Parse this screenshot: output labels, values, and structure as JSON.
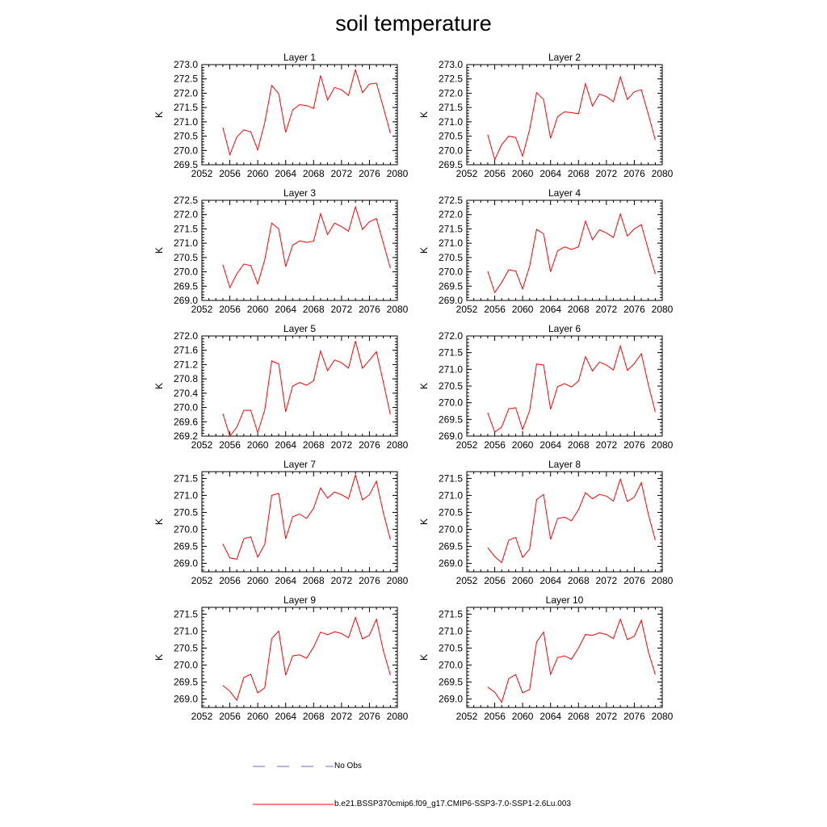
{
  "title": "soil temperature",
  "colors": {
    "series": "#ff0000",
    "obs": "#6a6acd",
    "axis": "#000000"
  },
  "legend": {
    "obs_label": "No Obs",
    "model_label": "b.e21.BSSP370cmip6.f09_g17.CMIP6-SSP3-7.0-SSP1-2.6Lu.003"
  },
  "chart_data": [
    {
      "type": "line",
      "title": "Layer 1",
      "ylabel": "K",
      "xlim": [
        2052,
        2080
      ],
      "xticks": [
        "2052",
        "2056",
        "2060",
        "2064",
        "2068",
        "2072",
        "2076",
        "2080"
      ],
      "ylim": [
        269.5,
        273.0
      ],
      "yticks": [
        "269.5",
        "270.0",
        "270.5",
        "271.0",
        "271.5",
        "272.0",
        "272.5",
        "273.0"
      ],
      "x": [
        2055,
        2056,
        2057,
        2058,
        2059,
        2060,
        2061,
        2062,
        2063,
        2064,
        2065,
        2066,
        2067,
        2068,
        2069,
        2070,
        2071,
        2072,
        2073,
        2074,
        2075,
        2076,
        2077,
        2078,
        2079
      ],
      "values": [
        270.8,
        269.85,
        270.47,
        270.72,
        270.65,
        270.02,
        270.97,
        272.27,
        271.98,
        270.63,
        271.42,
        271.6,
        271.57,
        271.47,
        272.62,
        271.76,
        272.2,
        272.12,
        271.92,
        272.82,
        272.02,
        272.32,
        272.35,
        271.5,
        270.6
      ]
    },
    {
      "type": "line",
      "title": "Layer 2",
      "ylabel": "K",
      "xlim": [
        2052,
        2080
      ],
      "xticks": [
        "2052",
        "2056",
        "2060",
        "2064",
        "2068",
        "2072",
        "2076",
        "2080"
      ],
      "ylim": [
        269.5,
        273.0
      ],
      "yticks": [
        "269.5",
        "270.0",
        "270.5",
        "271.0",
        "271.5",
        "272.0",
        "272.5",
        "273.0"
      ],
      "x": [
        2055,
        2056,
        2057,
        2058,
        2059,
        2060,
        2061,
        2062,
        2063,
        2064,
        2065,
        2066,
        2067,
        2068,
        2069,
        2070,
        2071,
        2072,
        2073,
        2074,
        2075,
        2076,
        2077,
        2078,
        2079
      ],
      "values": [
        270.55,
        269.68,
        270.2,
        270.5,
        270.45,
        269.8,
        270.73,
        272.02,
        271.78,
        270.42,
        271.18,
        271.35,
        271.32,
        271.28,
        272.33,
        271.55,
        271.97,
        271.88,
        271.7,
        272.57,
        271.78,
        272.05,
        272.12,
        271.27,
        270.37
      ]
    },
    {
      "type": "line",
      "title": "Layer 3",
      "ylabel": "K",
      "xlim": [
        2052,
        2080
      ],
      "xticks": [
        "2052",
        "2056",
        "2060",
        "2064",
        "2068",
        "2072",
        "2076",
        "2080"
      ],
      "ylim": [
        269.0,
        272.5
      ],
      "yticks": [
        "269.0",
        "269.5",
        "270.0",
        "270.5",
        "271.0",
        "271.5",
        "272.0",
        "272.5"
      ],
      "x": [
        2055,
        2056,
        2057,
        2058,
        2059,
        2060,
        2061,
        2062,
        2063,
        2064,
        2065,
        2066,
        2067,
        2068,
        2069,
        2070,
        2071,
        2072,
        2073,
        2074,
        2075,
        2076,
        2077,
        2078,
        2079
      ],
      "values": [
        270.25,
        269.45,
        269.93,
        270.27,
        270.22,
        269.58,
        270.42,
        271.7,
        271.5,
        270.18,
        270.93,
        271.08,
        271.03,
        271.07,
        272.03,
        271.3,
        271.7,
        271.58,
        271.42,
        272.27,
        271.48,
        271.75,
        271.86,
        271.0,
        270.12
      ]
    },
    {
      "type": "line",
      "title": "Layer 4",
      "ylabel": "K",
      "xlim": [
        2052,
        2080
      ],
      "xticks": [
        "2052",
        "2056",
        "2060",
        "2064",
        "2068",
        "2072",
        "2076",
        "2080"
      ],
      "ylim": [
        269.0,
        272.5
      ],
      "yticks": [
        "269.0",
        "269.5",
        "270.0",
        "270.5",
        "271.0",
        "271.5",
        "272.0",
        "272.5"
      ],
      "x": [
        2055,
        2056,
        2057,
        2058,
        2059,
        2060,
        2061,
        2062,
        2063,
        2064,
        2065,
        2066,
        2067,
        2068,
        2069,
        2070,
        2071,
        2072,
        2073,
        2074,
        2075,
        2076,
        2077,
        2078,
        2079
      ],
      "values": [
        270.02,
        269.28,
        269.63,
        270.07,
        270.03,
        269.4,
        270.2,
        271.48,
        271.33,
        270.0,
        270.73,
        270.87,
        270.78,
        270.87,
        271.77,
        271.12,
        271.47,
        271.36,
        271.2,
        272.02,
        271.25,
        271.5,
        271.65,
        270.77,
        269.92
      ]
    },
    {
      "type": "line",
      "title": "Layer 5",
      "ylabel": "K",
      "xlim": [
        2052,
        2080
      ],
      "xticks": [
        "2052",
        "2056",
        "2060",
        "2064",
        "2068",
        "2072",
        "2076",
        "2080"
      ],
      "ylim": [
        269.2,
        272.0
      ],
      "yticks": [
        "269.2",
        "269.6",
        "270.0",
        "270.4",
        "270.8",
        "271.2",
        "271.6",
        "272.0"
      ],
      "x": [
        2055,
        2056,
        2057,
        2058,
        2059,
        2060,
        2061,
        2062,
        2063,
        2064,
        2065,
        2066,
        2067,
        2068,
        2069,
        2070,
        2071,
        2072,
        2073,
        2074,
        2075,
        2076,
        2077,
        2078,
        2079
      ],
      "values": [
        269.83,
        269.2,
        269.45,
        269.92,
        269.92,
        269.3,
        269.93,
        271.3,
        271.22,
        269.88,
        270.6,
        270.7,
        270.62,
        270.75,
        271.58,
        271.03,
        271.33,
        271.25,
        271.1,
        271.86,
        271.1,
        271.32,
        271.56,
        270.7,
        269.8
      ]
    },
    {
      "type": "line",
      "title": "Layer 6",
      "ylabel": "K",
      "xlim": [
        2052,
        2080
      ],
      "xticks": [
        "2052",
        "2056",
        "2060",
        "2064",
        "2068",
        "2072",
        "2076",
        "2080"
      ],
      "ylim": [
        269.0,
        272.0
      ],
      "yticks": [
        "269.0",
        "269.5",
        "270.0",
        "270.5",
        "271.0",
        "271.5",
        "272.0"
      ],
      "x": [
        2055,
        2056,
        2057,
        2058,
        2059,
        2060,
        2061,
        2062,
        2063,
        2064,
        2065,
        2066,
        2067,
        2068,
        2069,
        2070,
        2071,
        2072,
        2073,
        2074,
        2075,
        2076,
        2077,
        2078,
        2079
      ],
      "values": [
        269.7,
        269.12,
        269.27,
        269.82,
        269.85,
        269.2,
        269.76,
        271.16,
        271.13,
        269.8,
        270.48,
        270.57,
        270.47,
        270.65,
        271.38,
        270.95,
        271.22,
        271.13,
        270.98,
        271.7,
        270.97,
        271.17,
        271.47,
        270.55,
        269.72
      ]
    },
    {
      "type": "line",
      "title": "Layer 7",
      "ylabel": "K",
      "xlim": [
        2052,
        2080
      ],
      "xticks": [
        "2052",
        "2056",
        "2060",
        "2064",
        "2068",
        "2072",
        "2076",
        "2080"
      ],
      "ylim": [
        268.75,
        271.7
      ],
      "yticks": [
        "269.0",
        "269.5",
        "270.0",
        "270.5",
        "271.0",
        "271.5"
      ],
      "x": [
        2055,
        2056,
        2057,
        2058,
        2059,
        2060,
        2061,
        2062,
        2063,
        2064,
        2065,
        2066,
        2067,
        2068,
        2069,
        2070,
        2071,
        2072,
        2073,
        2074,
        2075,
        2076,
        2077,
        2078,
        2079
      ],
      "values": [
        269.57,
        269.16,
        269.12,
        269.72,
        269.78,
        269.18,
        269.56,
        271.0,
        271.06,
        269.72,
        270.37,
        270.45,
        270.32,
        270.62,
        271.22,
        270.92,
        271.1,
        271.02,
        270.9,
        271.6,
        270.87,
        271.02,
        271.42,
        270.48,
        269.7
      ]
    },
    {
      "type": "line",
      "title": "Layer 8",
      "ylabel": "K",
      "xlim": [
        2052,
        2080
      ],
      "xticks": [
        "2052",
        "2056",
        "2060",
        "2064",
        "2068",
        "2072",
        "2076",
        "2080"
      ],
      "ylim": [
        268.75,
        271.7
      ],
      "yticks": [
        "269.0",
        "269.5",
        "270.0",
        "270.5",
        "271.0",
        "271.5"
      ],
      "x": [
        2055,
        2056,
        2057,
        2058,
        2059,
        2060,
        2061,
        2062,
        2063,
        2064,
        2065,
        2066,
        2067,
        2068,
        2069,
        2070,
        2071,
        2072,
        2073,
        2074,
        2075,
        2076,
        2077,
        2078,
        2079
      ],
      "values": [
        269.46,
        269.2,
        269.02,
        269.68,
        269.76,
        269.17,
        269.42,
        270.88,
        271.03,
        269.7,
        270.32,
        270.36,
        270.25,
        270.58,
        271.08,
        270.9,
        271.03,
        270.98,
        270.83,
        271.48,
        270.82,
        270.95,
        271.38,
        270.45,
        269.68
      ]
    },
    {
      "type": "line",
      "title": "Layer 9",
      "ylabel": "K",
      "xlim": [
        2052,
        2080
      ],
      "xticks": [
        "2052",
        "2056",
        "2060",
        "2064",
        "2068",
        "2072",
        "2076",
        "2080"
      ],
      "ylim": [
        268.75,
        271.7
      ],
      "yticks": [
        "269.0",
        "269.5",
        "270.0",
        "270.5",
        "271.0",
        "271.5"
      ],
      "x": [
        2055,
        2056,
        2057,
        2058,
        2059,
        2060,
        2061,
        2062,
        2063,
        2064,
        2065,
        2066,
        2067,
        2068,
        2069,
        2070,
        2071,
        2072,
        2073,
        2074,
        2075,
        2076,
        2077,
        2078,
        2079
      ],
      "values": [
        269.4,
        269.23,
        268.96,
        269.63,
        269.73,
        269.18,
        269.33,
        270.78,
        271.0,
        269.7,
        270.27,
        270.3,
        270.2,
        270.53,
        270.97,
        270.89,
        270.98,
        270.93,
        270.8,
        271.4,
        270.77,
        270.88,
        271.35,
        270.42,
        269.7
      ]
    },
    {
      "type": "line",
      "title": "Layer 10",
      "ylabel": "K",
      "xlim": [
        2052,
        2080
      ],
      "xticks": [
        "2052",
        "2056",
        "2060",
        "2064",
        "2068",
        "2072",
        "2076",
        "2080"
      ],
      "ylim": [
        268.75,
        271.7
      ],
      "yticks": [
        "269.0",
        "269.5",
        "270.0",
        "270.5",
        "271.0",
        "271.5"
      ],
      "x": [
        2055,
        2056,
        2057,
        2058,
        2059,
        2060,
        2061,
        2062,
        2063,
        2064,
        2065,
        2066,
        2067,
        2068,
        2069,
        2070,
        2071,
        2072,
        2073,
        2074,
        2075,
        2076,
        2077,
        2078,
        2079
      ],
      "values": [
        269.35,
        269.2,
        268.9,
        269.6,
        269.72,
        269.18,
        269.28,
        270.68,
        270.97,
        269.72,
        270.22,
        270.27,
        270.17,
        270.5,
        270.9,
        270.87,
        270.95,
        270.9,
        270.78,
        271.35,
        270.75,
        270.85,
        271.32,
        270.4,
        269.72
      ]
    }
  ]
}
